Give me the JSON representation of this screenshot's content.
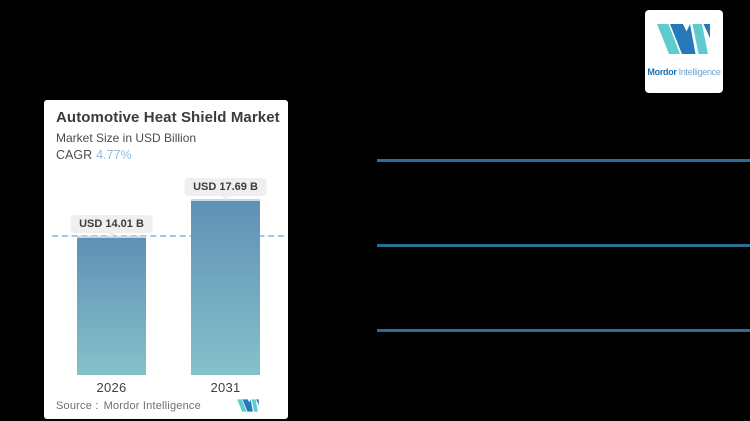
{
  "page": {
    "background": "#000000",
    "separator_color": "#2b6d94"
  },
  "chart_card": {
    "title": "Automotive Heat Shield Market",
    "subtitle": "Market Size in USD Billion",
    "cagr_label": "CAGR",
    "cagr_value": "4.77%",
    "source_label": "Source :",
    "source_value": "Mordor Intelligence",
    "bars": [
      {
        "year": "2026",
        "label": "USD 14.01 B",
        "value": 14.01
      },
      {
        "year": "2031",
        "label": "USD 17.69 B",
        "value": 17.69
      }
    ],
    "colors": {
      "bar_top": "#6090b5",
      "bar_bottom": "#85c1cb",
      "reference_line": "#a9c6db",
      "badge_bg": "#efefef",
      "cagr_text": "#93bbdd"
    }
  },
  "logo": {
    "brand_bold": "Mordor",
    "brand_light": "Intelligence",
    "mark_teal": "#5ecbcf",
    "mark_blue": "#2579bb"
  },
  "chart_data": {
    "type": "bar",
    "title": "Automotive Heat Shield Market",
    "subtitle": "Market Size in USD Billion",
    "cagr": "4.77%",
    "unit": "USD Billion",
    "categories": [
      "2026",
      "2031"
    ],
    "values": [
      14.01,
      17.69
    ],
    "value_labels": [
      "USD 14.01 B",
      "USD 17.69 B"
    ],
    "ylim": [
      0,
      17.69
    ],
    "grid": false,
    "reference_line": {
      "style": "dashed",
      "value": 14.01
    },
    "legend": "none",
    "source": "Source : Mordor Intelligence"
  }
}
